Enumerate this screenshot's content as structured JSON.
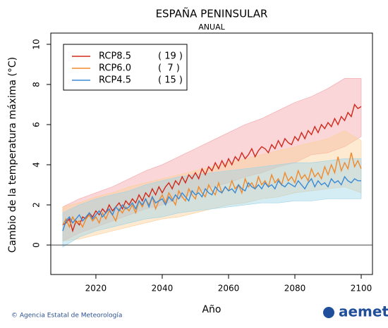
{
  "chart_data": {
    "type": "line",
    "title": "ESPAÑA PENINSULAR",
    "subtitle": "ANUAL",
    "x_label": "Año",
    "y_label": "Cambio  de la temperatura máxima (°C)",
    "xlim": [
      2006.4,
      2103.4
    ],
    "xticks": [
      2020,
      2040,
      2060,
      2080,
      2100
    ],
    "ylim": [
      -1.47,
      10.56
    ],
    "yticks": [
      0,
      2,
      4,
      6,
      8,
      10
    ],
    "zero_line": 0,
    "legend_position": "top-left",
    "x": [
      2010,
      2011,
      2012,
      2013,
      2014,
      2015,
      2016,
      2017,
      2018,
      2019,
      2020,
      2021,
      2022,
      2023,
      2024,
      2025,
      2026,
      2027,
      2028,
      2029,
      2030,
      2031,
      2032,
      2033,
      2034,
      2035,
      2036,
      2037,
      2038,
      2039,
      2040,
      2041,
      2042,
      2043,
      2044,
      2045,
      2046,
      2047,
      2048,
      2049,
      2050,
      2051,
      2052,
      2053,
      2054,
      2055,
      2056,
      2057,
      2058,
      2059,
      2060,
      2061,
      2062,
      2063,
      2064,
      2065,
      2066,
      2067,
      2068,
      2069,
      2070,
      2071,
      2072,
      2073,
      2074,
      2075,
      2076,
      2077,
      2078,
      2079,
      2080,
      2081,
      2082,
      2083,
      2084,
      2085,
      2086,
      2087,
      2088,
      2089,
      2090,
      2091,
      2092,
      2093,
      2094,
      2095,
      2096,
      2097,
      2098,
      2099,
      2100
    ],
    "band_x": [
      2010,
      2015,
      2020,
      2025,
      2030,
      2035,
      2040,
      2045,
      2050,
      2055,
      2060,
      2065,
      2070,
      2075,
      2080,
      2085,
      2090,
      2095,
      2100
    ],
    "series": [
      {
        "name": "RCP8.5",
        "count": "( 19 )",
        "color": "#d0281c",
        "band_color": "#f4a3a8",
        "values": [
          1.0,
          1.1,
          1.3,
          0.7,
          1.2,
          1.0,
          1.4,
          1.3,
          1.6,
          1.4,
          1.7,
          1.5,
          1.8,
          1.6,
          2.0,
          1.7,
          1.9,
          2.1,
          1.8,
          2.2,
          2.0,
          2.3,
          2.1,
          2.5,
          2.2,
          2.6,
          2.4,
          2.8,
          2.5,
          2.9,
          2.6,
          2.9,
          3.1,
          2.8,
          3.2,
          3.0,
          3.4,
          3.1,
          3.5,
          3.3,
          3.6,
          3.3,
          3.8,
          3.5,
          3.9,
          3.7,
          4.1,
          3.8,
          4.2,
          3.9,
          4.3,
          4.0,
          4.4,
          4.2,
          4.6,
          4.3,
          4.5,
          4.8,
          4.4,
          4.7,
          4.9,
          4.8,
          4.6,
          5.0,
          4.8,
          5.2,
          4.9,
          5.3,
          5.1,
          5.0,
          5.4,
          5.2,
          5.6,
          5.3,
          5.7,
          5.5,
          5.9,
          5.6,
          6.0,
          5.8,
          6.1,
          5.9,
          6.3,
          6.0,
          6.4,
          6.2,
          6.6,
          6.4,
          7.0,
          6.8,
          6.9
        ],
        "lower": [
          0.2,
          0.6,
          0.9,
          1.2,
          1.5,
          1.8,
          2.0,
          2.3,
          2.6,
          2.9,
          3.1,
          3.4,
          3.6,
          3.9,
          4.1,
          4.5,
          4.6,
          4.9,
          5.4
        ],
        "upper": [
          1.9,
          2.3,
          2.6,
          2.9,
          3.3,
          3.7,
          4.0,
          4.4,
          4.8,
          5.2,
          5.6,
          6.0,
          6.3,
          6.7,
          7.1,
          7.4,
          7.8,
          8.3,
          8.3
        ]
      },
      {
        "name": "RCP6.0",
        "count": "(  7 )",
        "color": "#f08a2c",
        "band_color": "#fbd09a",
        "values": [
          1.0,
          1.3,
          0.9,
          1.4,
          1.1,
          1.2,
          0.9,
          1.3,
          1.5,
          1.2,
          1.4,
          1.1,
          1.6,
          1.3,
          1.7,
          1.5,
          1.2,
          1.8,
          1.6,
          1.9,
          1.7,
          2.0,
          1.6,
          2.2,
          1.9,
          2.3,
          2.0,
          2.4,
          1.8,
          2.2,
          2.5,
          2.1,
          2.6,
          2.3,
          2.0,
          2.7,
          2.4,
          2.2,
          2.8,
          2.5,
          2.3,
          2.9,
          2.6,
          2.4,
          3.0,
          2.7,
          2.5,
          3.1,
          2.6,
          2.9,
          2.7,
          3.2,
          2.8,
          3.0,
          2.6,
          3.3,
          2.9,
          3.1,
          2.8,
          3.4,
          3.0,
          3.2,
          2.9,
          3.5,
          3.1,
          3.3,
          3.0,
          3.6,
          3.2,
          3.4,
          3.1,
          3.7,
          3.3,
          3.5,
          3.2,
          3.8,
          3.4,
          3.6,
          3.3,
          3.9,
          3.5,
          4.0,
          3.6,
          4.4,
          3.7,
          4.1,
          3.8,
          4.6,
          3.9,
          4.2,
          3.8
        ],
        "lower": [
          0.2,
          0.3,
          0.5,
          0.7,
          0.9,
          1.1,
          1.3,
          1.4,
          1.6,
          1.8,
          2.0,
          2.1,
          2.3,
          2.4,
          2.6,
          2.7,
          2.8,
          2.9,
          2.6
        ],
        "upper": [
          1.9,
          2.1,
          2.4,
          2.6,
          2.9,
          3.1,
          3.3,
          3.5,
          3.7,
          3.9,
          4.1,
          4.3,
          4.5,
          4.7,
          4.9,
          5.1,
          5.3,
          5.7,
          5.2
        ]
      },
      {
        "name": "RCP4.5",
        "count": "( 15 )",
        "color": "#3a8ad6",
        "band_color": "#9fd4e6",
        "values": [
          0.7,
          1.2,
          1.4,
          1.1,
          1.3,
          1.5,
          1.2,
          1.4,
          1.6,
          1.3,
          1.5,
          1.7,
          1.4,
          1.6,
          1.8,
          1.5,
          1.9,
          1.7,
          2.0,
          1.8,
          1.9,
          2.1,
          1.8,
          2.2,
          2.0,
          2.3,
          1.9,
          2.4,
          2.1,
          2.2,
          2.3,
          2.0,
          2.4,
          2.2,
          2.5,
          2.3,
          2.6,
          2.4,
          2.2,
          2.7,
          2.5,
          2.6,
          2.4,
          2.8,
          2.6,
          2.5,
          2.9,
          2.7,
          2.6,
          2.9,
          2.7,
          2.8,
          2.6,
          3.0,
          2.8,
          2.7,
          3.1,
          2.9,
          2.8,
          3.0,
          2.8,
          3.1,
          2.9,
          3.0,
          2.8,
          3.2,
          3.0,
          2.9,
          3.1,
          3.0,
          2.9,
          3.2,
          3.0,
          2.8,
          3.1,
          3.3,
          2.9,
          3.2,
          3.0,
          3.1,
          2.9,
          3.3,
          3.1,
          3.2,
          3.0,
          3.4,
          3.2,
          3.1,
          3.3,
          3.2,
          3.2
        ],
        "lower": [
          -0.1,
          0.4,
          0.7,
          0.9,
          1.1,
          1.3,
          1.4,
          1.6,
          1.7,
          1.8,
          1.9,
          2.0,
          2.1,
          2.1,
          2.2,
          2.2,
          2.3,
          2.3,
          2.3
        ],
        "upper": [
          1.6,
          2.0,
          2.3,
          2.5,
          2.7,
          3.0,
          3.2,
          3.4,
          3.5,
          3.6,
          3.7,
          3.8,
          3.9,
          4.0,
          4.1,
          4.1,
          4.2,
          4.3,
          4.3
        ]
      }
    ]
  },
  "footer": {
    "credit": "© Agencia Estatal de Meteorología",
    "logo": "aemet"
  }
}
